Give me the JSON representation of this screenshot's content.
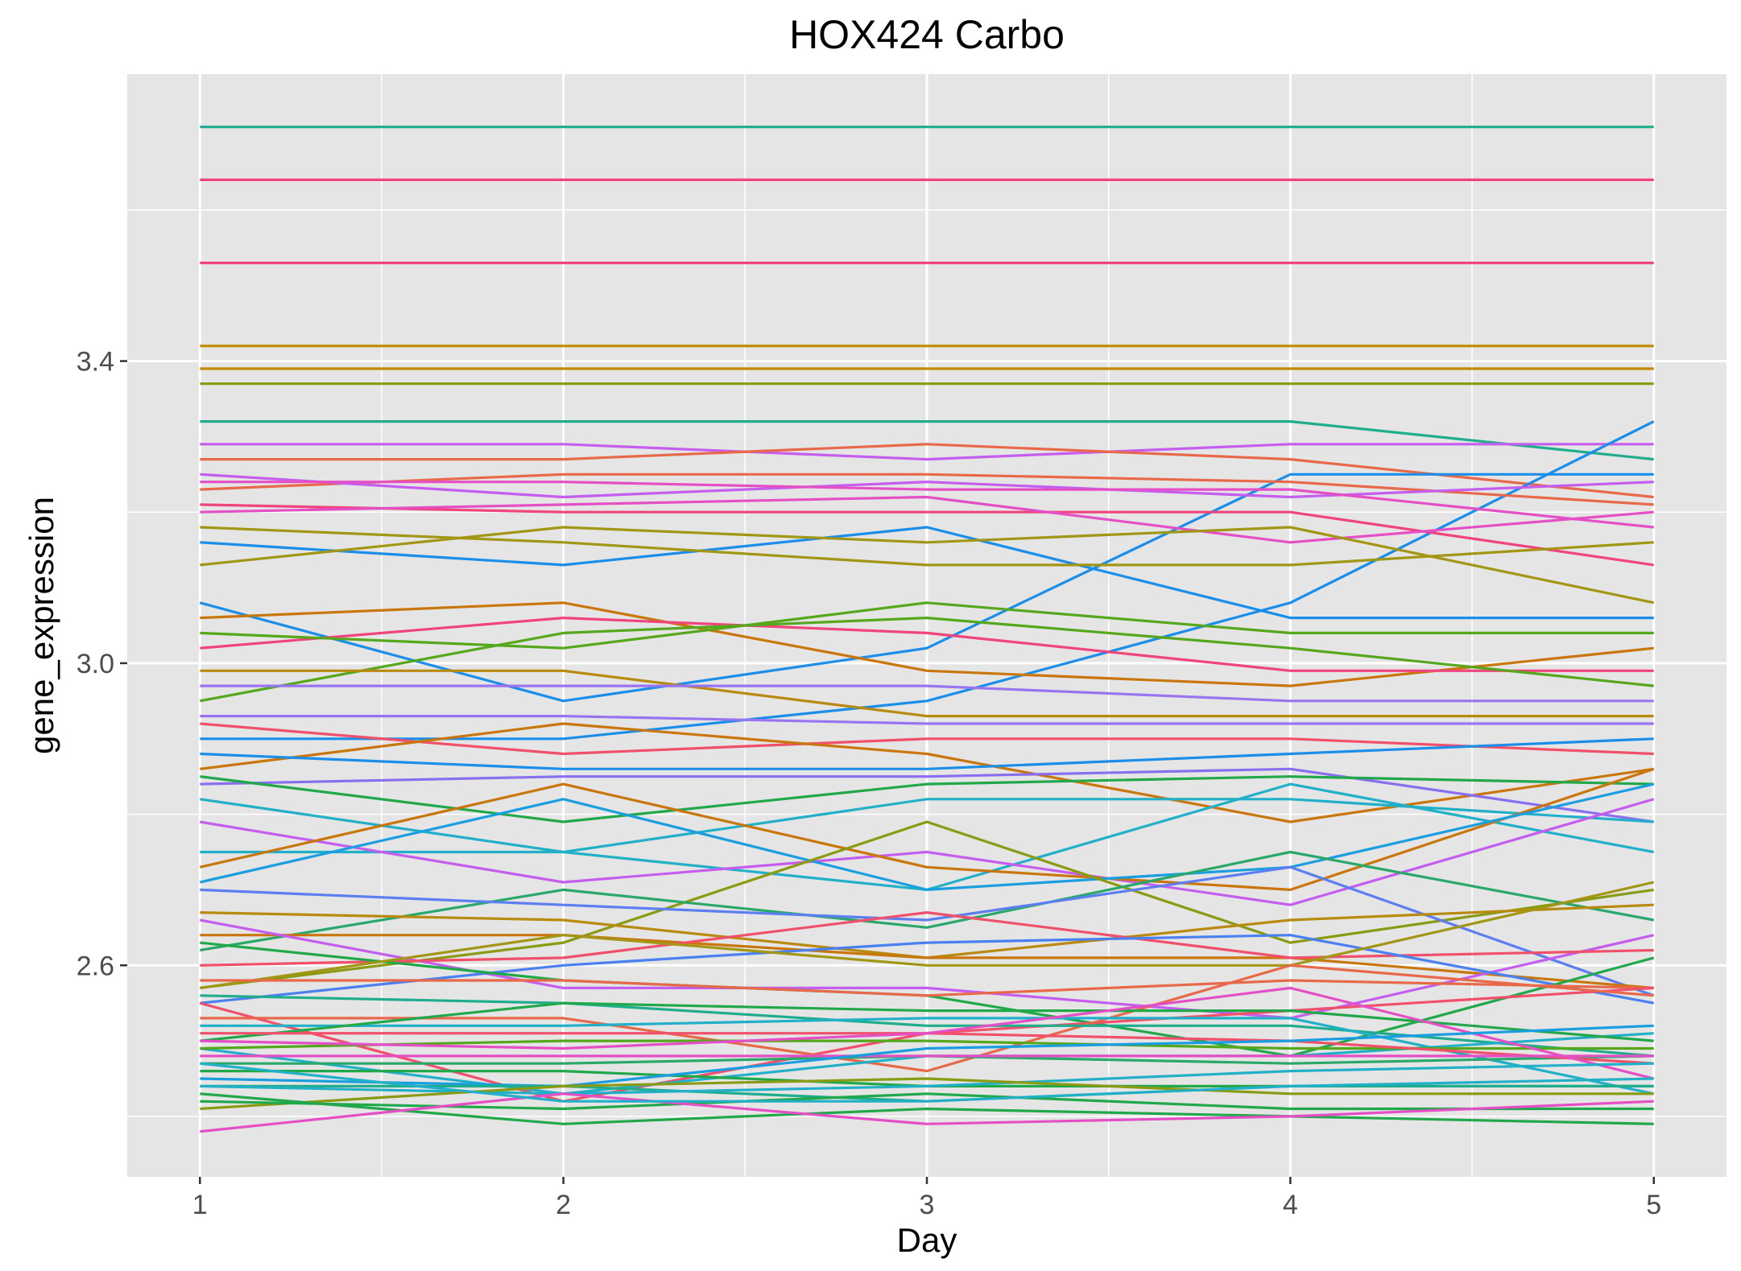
{
  "chart_data": {
    "type": "line",
    "title": "HOX424 Carbo",
    "xlabel": "Day",
    "ylabel": "gene_expression",
    "x": [
      1,
      2,
      3,
      4,
      5
    ],
    "xlim": [
      0.8,
      5.2
    ],
    "ylim": [
      2.32,
      3.78
    ],
    "x_ticks": [
      1,
      2,
      3,
      4,
      5
    ],
    "y_ticks": [
      2.6,
      3.0,
      3.4
    ],
    "grid": true,
    "panel_background": "#e5e5e5",
    "grid_color": "#ffffff",
    "legend": "none",
    "series": [
      {
        "color": "#1fad8e",
        "values": [
          3.71,
          3.71,
          3.71,
          3.71,
          3.71
        ]
      },
      {
        "color": "#f0447c",
        "values": [
          3.64,
          3.64,
          3.64,
          3.64,
          3.64
        ]
      },
      {
        "color": "#f0447c",
        "values": [
          3.53,
          3.53,
          3.53,
          3.53,
          3.53
        ]
      },
      {
        "color": "#c18a00",
        "values": [
          3.42,
          3.42,
          3.42,
          3.42,
          3.42
        ]
      },
      {
        "color": "#c18a00",
        "values": [
          3.39,
          3.39,
          3.39,
          3.39,
          3.39
        ]
      },
      {
        "color": "#8a9a12",
        "values": [
          3.37,
          3.37,
          3.37,
          3.37,
          3.37
        ]
      },
      {
        "color": "#1fad8e",
        "values": [
          3.32,
          3.32,
          3.32,
          3.32,
          3.27
        ]
      },
      {
        "color": "#c55dee",
        "values": [
          3.29,
          3.29,
          3.27,
          3.29,
          3.29
        ]
      },
      {
        "color": "#e8694a",
        "values": [
          3.27,
          3.27,
          3.29,
          3.27,
          3.22
        ]
      },
      {
        "color": "#1a8ee8",
        "values": [
          3.16,
          3.13,
          3.18,
          3.06,
          3.06
        ]
      },
      {
        "color": "#1a8ee8",
        "values": [
          3.08,
          2.95,
          3.02,
          3.25,
          3.25
        ]
      },
      {
        "color": "#1a8ee8",
        "values": [
          2.9,
          2.9,
          2.95,
          3.08,
          3.32
        ]
      },
      {
        "color": "#e8694a",
        "values": [
          3.23,
          3.25,
          3.25,
          3.24,
          3.21
        ]
      },
      {
        "color": "#c55dee",
        "values": [
          3.25,
          3.22,
          3.24,
          3.22,
          3.24
        ]
      },
      {
        "color": "#e54fc6",
        "values": [
          3.24,
          3.24,
          3.23,
          3.23,
          3.18
        ]
      },
      {
        "color": "#f0447c",
        "values": [
          3.21,
          3.2,
          3.2,
          3.2,
          3.13
        ]
      },
      {
        "color": "#e54fc6",
        "values": [
          3.2,
          3.21,
          3.22,
          3.16,
          3.2
        ]
      },
      {
        "color": "#a29615",
        "values": [
          3.18,
          3.16,
          3.13,
          3.13,
          3.16
        ]
      },
      {
        "color": "#a29615",
        "values": [
          3.13,
          3.18,
          3.16,
          3.18,
          3.08
        ]
      },
      {
        "color": "#c9760c",
        "values": [
          3.06,
          3.08,
          2.99,
          2.97,
          3.02
        ]
      },
      {
        "color": "#f0447c",
        "values": [
          3.02,
          3.06,
          3.04,
          2.99,
          2.99
        ]
      },
      {
        "color": "#55a71b",
        "values": [
          3.04,
          3.02,
          3.08,
          3.04,
          3.04
        ]
      },
      {
        "color": "#55a71b",
        "values": [
          2.95,
          3.04,
          3.06,
          3.02,
          2.97
        ]
      },
      {
        "color": "#b88a10",
        "values": [
          2.99,
          2.99,
          2.93,
          2.93,
          2.93
        ]
      },
      {
        "color": "#9a74f0",
        "values": [
          2.97,
          2.97,
          2.97,
          2.95,
          2.95
        ]
      },
      {
        "color": "#9a74f0",
        "values": [
          2.93,
          2.93,
          2.92,
          2.92,
          2.92
        ]
      },
      {
        "color": "#f0506a",
        "values": [
          2.92,
          2.88,
          2.9,
          2.9,
          2.88
        ]
      },
      {
        "color": "#c9760c",
        "values": [
          2.86,
          2.92,
          2.88,
          2.79,
          2.86
        ]
      },
      {
        "color": "#1a8ee8",
        "values": [
          2.88,
          2.86,
          2.86,
          2.88,
          2.9
        ]
      },
      {
        "color": "#8a6ef0",
        "values": [
          2.84,
          2.85,
          2.85,
          2.86,
          2.79
        ]
      },
      {
        "color": "#21a84a",
        "values": [
          2.85,
          2.79,
          2.84,
          2.85,
          2.84
        ]
      },
      {
        "color": "#22b0c8",
        "values": [
          2.82,
          2.75,
          2.82,
          2.82,
          2.79
        ]
      },
      {
        "color": "#22b0c8",
        "values": [
          2.75,
          2.75,
          2.7,
          2.84,
          2.75
        ]
      },
      {
        "color": "#c55dee",
        "values": [
          2.79,
          2.71,
          2.75,
          2.68,
          2.82
        ]
      },
      {
        "color": "#c9760c",
        "values": [
          2.73,
          2.84,
          2.73,
          2.7,
          2.86
        ]
      },
      {
        "color": "#1a9ee0",
        "values": [
          2.71,
          2.82,
          2.7,
          2.73,
          2.84
        ]
      },
      {
        "color": "#8a9a12",
        "values": [
          2.57,
          2.63,
          2.79,
          2.63,
          2.7
        ]
      },
      {
        "color": "#2aa86a",
        "values": [
          2.62,
          2.7,
          2.65,
          2.75,
          2.66
        ]
      },
      {
        "color": "#5c7ef0",
        "values": [
          2.7,
          2.68,
          2.66,
          2.73,
          2.56
        ]
      },
      {
        "color": "#b88a10",
        "values": [
          2.67,
          2.66,
          2.61,
          2.66,
          2.68
        ]
      },
      {
        "color": "#c9760c",
        "values": [
          2.64,
          2.64,
          2.61,
          2.61,
          2.57
        ]
      },
      {
        "color": "#c55dee",
        "values": [
          2.66,
          2.57,
          2.57,
          2.53,
          2.64
        ]
      },
      {
        "color": "#f0506a",
        "values": [
          2.6,
          2.61,
          2.67,
          2.61,
          2.62
        ]
      },
      {
        "color": "#4a80f0",
        "values": [
          2.55,
          2.6,
          2.63,
          2.64,
          2.55
        ]
      },
      {
        "color": "#21a84a",
        "values": [
          2.63,
          2.58,
          2.56,
          2.48,
          2.61
        ]
      },
      {
        "color": "#a29615",
        "values": [
          2.57,
          2.64,
          2.6,
          2.6,
          2.71
        ]
      },
      {
        "color": "#e8694a",
        "values": [
          2.58,
          2.58,
          2.56,
          2.58,
          2.57
        ]
      },
      {
        "color": "#f0506a",
        "values": [
          2.55,
          2.42,
          2.51,
          2.54,
          2.57
        ]
      },
      {
        "color": "#e8694a",
        "values": [
          2.53,
          2.53,
          2.46,
          2.6,
          2.56
        ]
      },
      {
        "color": "#1fad8e",
        "values": [
          2.56,
          2.55,
          2.52,
          2.52,
          2.48
        ]
      },
      {
        "color": "#22b0c8",
        "values": [
          2.52,
          2.52,
          2.53,
          2.53,
          2.43
        ]
      },
      {
        "color": "#22b0c8",
        "values": [
          2.49,
          2.43,
          2.48,
          2.48,
          2.51
        ]
      },
      {
        "color": "#21a84a",
        "values": [
          2.5,
          2.55,
          2.54,
          2.54,
          2.5
        ]
      },
      {
        "color": "#55a71b",
        "values": [
          2.49,
          2.5,
          2.5,
          2.49,
          2.49
        ]
      },
      {
        "color": "#2aa86a",
        "values": [
          2.47,
          2.47,
          2.48,
          2.47,
          2.48
        ]
      },
      {
        "color": "#21a84a",
        "values": [
          2.46,
          2.46,
          2.44,
          2.44,
          2.44
        ]
      },
      {
        "color": "#f0506a",
        "values": [
          2.51,
          2.51,
          2.51,
          2.5,
          2.47
        ]
      },
      {
        "color": "#e54fc6",
        "values": [
          2.5,
          2.49,
          2.51,
          2.57,
          2.45
        ]
      },
      {
        "color": "#e54fc6",
        "values": [
          2.48,
          2.48,
          2.48,
          2.48,
          2.48
        ]
      },
      {
        "color": "#1a9ee0",
        "values": [
          2.45,
          2.44,
          2.49,
          2.5,
          2.52
        ]
      },
      {
        "color": "#1fad8e",
        "values": [
          2.44,
          2.44,
          2.42,
          2.44,
          2.44
        ]
      },
      {
        "color": "#22b0c8",
        "values": [
          2.44,
          2.43,
          2.44,
          2.46,
          2.47
        ]
      },
      {
        "color": "#8a9a12",
        "values": [
          2.41,
          2.44,
          2.45,
          2.43,
          2.43
        ]
      },
      {
        "color": "#21a84a",
        "values": [
          2.42,
          2.41,
          2.43,
          2.41,
          2.41
        ]
      },
      {
        "color": "#21a84a",
        "values": [
          2.43,
          2.39,
          2.41,
          2.4,
          2.39
        ]
      },
      {
        "color": "#e54fc6",
        "values": [
          2.38,
          2.43,
          2.39,
          2.4,
          2.42
        ]
      },
      {
        "color": "#22b0c8",
        "values": [
          2.47,
          2.42,
          2.42,
          2.44,
          2.45
        ]
      }
    ]
  }
}
